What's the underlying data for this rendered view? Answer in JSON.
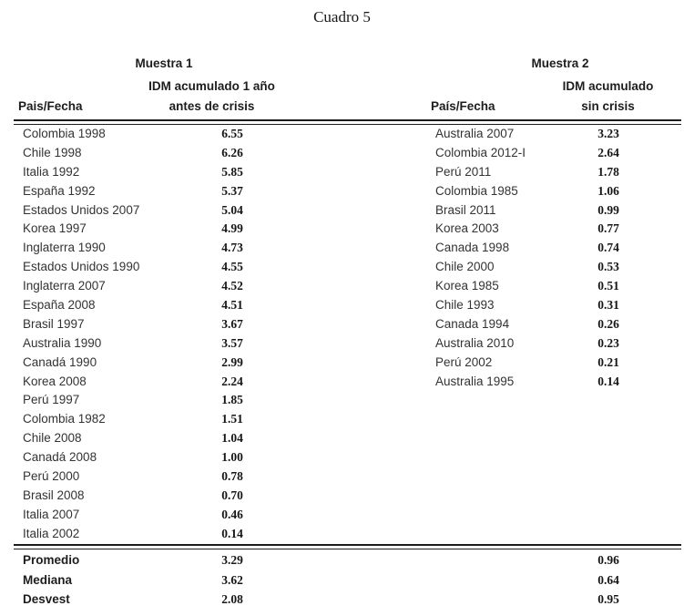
{
  "title": "Cuadro 5",
  "muestra1": {
    "header": "Muestra 1",
    "col_pais": "Pais/Fecha",
    "col_valor_line1": "IDM acumulado 1 año",
    "col_valor_line2": "antes de crisis",
    "rows": [
      {
        "pais": "Colombia 1998",
        "valor": "6.55"
      },
      {
        "pais": "Chile 1998",
        "valor": "6.26"
      },
      {
        "pais": "Italia 1992",
        "valor": "5.85"
      },
      {
        "pais": "España 1992",
        "valor": "5.37"
      },
      {
        "pais": "Estados Unidos 2007",
        "valor": "5.04"
      },
      {
        "pais": "Korea 1997",
        "valor": "4.99"
      },
      {
        "pais": "Inglaterra 1990",
        "valor": "4.73"
      },
      {
        "pais": "Estados Unidos 1990",
        "valor": "4.55"
      },
      {
        "pais": "Inglaterra 2007",
        "valor": "4.52"
      },
      {
        "pais": "España 2008",
        "valor": "4.51"
      },
      {
        "pais": "Brasil 1997",
        "valor": "3.67"
      },
      {
        "pais": "Australia 1990",
        "valor": "3.57"
      },
      {
        "pais": "Canadá 1990",
        "valor": "2.99"
      },
      {
        "pais": "Korea 2008",
        "valor": "2.24"
      },
      {
        "pais": "Perú 1997",
        "valor": "1.85"
      },
      {
        "pais": "Colombia 1982",
        "valor": "1.51"
      },
      {
        "pais": "Chile 2008",
        "valor": "1.04"
      },
      {
        "pais": "Canadá 2008",
        "valor": "1.00"
      },
      {
        "pais": "Perú 2000",
        "valor": "0.78"
      },
      {
        "pais": "Brasil 2008",
        "valor": "0.70"
      },
      {
        "pais": "Italia 2007",
        "valor": "0.46"
      },
      {
        "pais": "Italia 2002",
        "valor": "0.14"
      }
    ]
  },
  "muestra2": {
    "header": "Muestra 2",
    "col_pais": "País/Fecha",
    "col_valor_line1": "IDM acumulado",
    "col_valor_line2": "sin crisis",
    "rows": [
      {
        "pais": "Australia 2007",
        "valor": "3.23"
      },
      {
        "pais": "Colombia 2012-I",
        "valor": "2.64"
      },
      {
        "pais": "Perú 2011",
        "valor": "1.78"
      },
      {
        "pais": "Colombia 1985",
        "valor": "1.06"
      },
      {
        "pais": "Brasil 2011",
        "valor": "0.99"
      },
      {
        "pais": "Korea 2003",
        "valor": "0.77"
      },
      {
        "pais": "Canada 1998",
        "valor": "0.74"
      },
      {
        "pais": "Chile 2000",
        "valor": "0.53"
      },
      {
        "pais": "Korea 1985",
        "valor": "0.51"
      },
      {
        "pais": "Chile 1993",
        "valor": "0.31"
      },
      {
        "pais": "Canada 1994",
        "valor": "0.26"
      },
      {
        "pais": "Australia 2010",
        "valor": "0.23"
      },
      {
        "pais": "Perú 2002",
        "valor": "0.21"
      },
      {
        "pais": "Australia 1995",
        "valor": "0.14"
      }
    ]
  },
  "resumen": {
    "rows": [
      {
        "label": "Promedio",
        "m1": "3.29",
        "m2": "0.96"
      },
      {
        "label": "Mediana",
        "m1": "3.62",
        "m2": "0.64"
      },
      {
        "label": "Desvest",
        "m1": "2.08",
        "m2": "0.95"
      }
    ]
  },
  "colors": {
    "background": "#ffffff",
    "text": "#2b2b2b",
    "rule": "#1c1c1c"
  }
}
